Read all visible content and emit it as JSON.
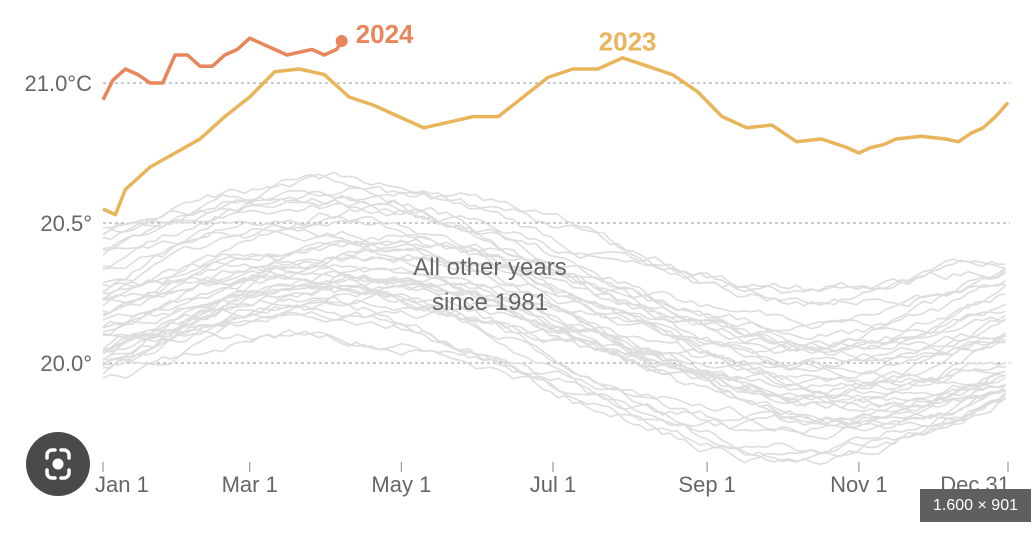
{
  "chart_data": {
    "type": "line",
    "title": "",
    "xlabel": "",
    "ylabel": "",
    "y_unit": "°C",
    "ylim": [
      19.75,
      21.2
    ],
    "grid": "dashed horizontal lines at y tick values",
    "x_ticks": [
      "Jan 1",
      "Mar 1",
      "May 1",
      "Jul 1",
      "Sep 1",
      "Nov 1",
      "Dec 31"
    ],
    "x_tick_days": [
      1,
      60,
      121,
      182,
      244,
      305,
      365
    ],
    "y_ticks": [
      {
        "value": 21.0,
        "label": "21.0°C"
      },
      {
        "value": 20.5,
        "label": "20.5°"
      },
      {
        "value": 20.0,
        "label": "20.0°"
      }
    ],
    "annotation": [
      "All other years",
      "since 1981"
    ],
    "colors": {
      "2023": "#e9b55a",
      "2024": "#e8855a",
      "other_years": "#dddddd",
      "grid": "#999999"
    },
    "series": [
      {
        "name": "2024",
        "label": "2024",
        "x_day": [
          1,
          5,
          10,
          15,
          20,
          25,
          30,
          35,
          40,
          45,
          50,
          55,
          60,
          65,
          70,
          75,
          80,
          85,
          90,
          95,
          97
        ],
        "values": [
          20.94,
          21.01,
          21.05,
          21.03,
          21.0,
          21.0,
          21.1,
          21.1,
          21.06,
          21.06,
          21.1,
          21.12,
          21.16,
          21.14,
          21.12,
          21.1,
          21.11,
          21.12,
          21.1,
          21.12,
          21.15
        ]
      },
      {
        "name": "2023",
        "label": "2023",
        "x_day": [
          1,
          6,
          10,
          15,
          20,
          30,
          40,
          50,
          60,
          70,
          80,
          90,
          100,
          110,
          120,
          130,
          140,
          150,
          160,
          170,
          180,
          190,
          200,
          210,
          220,
          230,
          240,
          250,
          260,
          270,
          280,
          290,
          300,
          305,
          310,
          315,
          320,
          330,
          340,
          345,
          350,
          355,
          360,
          365
        ],
        "values": [
          20.55,
          20.53,
          20.62,
          20.66,
          20.7,
          20.75,
          20.8,
          20.88,
          20.95,
          21.04,
          21.05,
          21.03,
          20.95,
          20.92,
          20.88,
          20.84,
          20.86,
          20.88,
          20.88,
          20.95,
          21.02,
          21.05,
          21.05,
          21.09,
          21.06,
          21.03,
          20.97,
          20.88,
          20.84,
          20.85,
          20.79,
          20.8,
          20.77,
          20.75,
          20.77,
          20.78,
          20.8,
          20.81,
          20.8,
          20.79,
          20.82,
          20.84,
          20.88,
          20.93
        ]
      }
    ]
  },
  "ui": {
    "resolution_badge": "1.600 × 901",
    "lens_button": "google-lens-icon"
  }
}
